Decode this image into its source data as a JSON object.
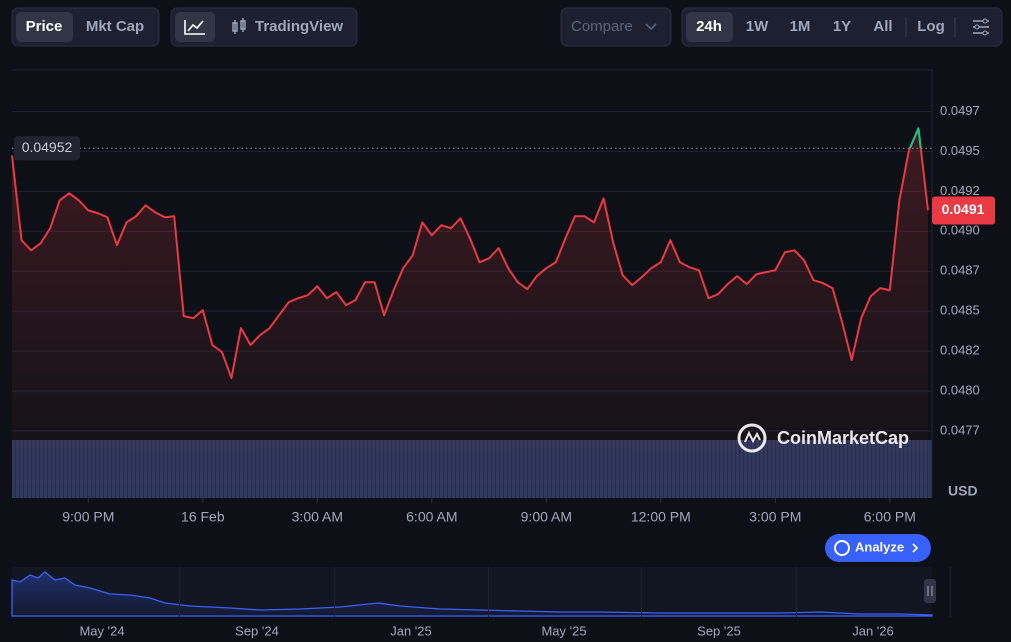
{
  "toolbar": {
    "metric_tabs": [
      "Price",
      "Mkt Cap"
    ],
    "chart_view": "TradingView",
    "compare": "Compare",
    "ranges": [
      "24h",
      "1W",
      "1M",
      "1Y",
      "All"
    ],
    "log": "Log"
  },
  "chart_data": {
    "type": "line",
    "x": [
      -5,
      -4.75,
      -4.5,
      -4.25,
      -4,
      -3.75,
      -3.5,
      -3.25,
      -3,
      -2.75,
      -2.5,
      -2.25,
      -2,
      -1.75,
      -1.5,
      -1.25,
      -1,
      -0.75,
      -0.5,
      -0.25,
      0,
      0.25,
      0.5,
      0.75,
      1,
      1.25,
      1.5,
      1.75,
      2,
      2.25,
      2.5,
      2.75,
      3,
      3.25,
      3.5,
      3.75,
      4,
      4.25,
      4.5,
      4.75,
      5,
      5.25,
      5.5,
      5.75,
      6,
      6.25,
      6.5,
      6.75,
      7,
      7.25,
      7.5,
      7.75,
      8,
      8.25,
      8.5,
      8.75,
      9,
      9.25,
      9.5,
      9.75,
      10,
      10.25,
      10.5,
      10.75,
      11,
      11.25,
      11.5,
      11.75,
      12,
      12.25,
      12.5,
      12.75,
      13,
      13.25,
      13.5,
      13.75,
      14,
      14.25,
      14.5,
      14.75,
      15,
      15.25,
      15.5,
      15.75,
      16,
      16.25,
      16.5,
      16.75,
      17,
      17.25,
      17.5,
      17.75,
      18,
      18.25,
      18.5,
      18.75,
      19
    ],
    "series": [
      {
        "color": "#ea3943",
        "color_above": "#16c784",
        "values": [
          0.049475,
          0.048944,
          0.048881,
          0.048925,
          0.049019,
          0.049194,
          0.049238,
          0.049194,
          0.049131,
          0.049113,
          0.049088,
          0.048913,
          0.049056,
          0.049094,
          0.049163,
          0.049119,
          0.049088,
          0.049094,
          0.048469,
          0.048456,
          0.048506,
          0.048288,
          0.048244,
          0.048081,
          0.048394,
          0.048288,
          0.04835,
          0.048394,
          0.048475,
          0.048556,
          0.048581,
          0.0486,
          0.048656,
          0.048581,
          0.048619,
          0.048538,
          0.048569,
          0.048681,
          0.048681,
          0.048475,
          0.048631,
          0.048769,
          0.04885,
          0.049056,
          0.048975,
          0.049038,
          0.049019,
          0.049081,
          0.048956,
          0.048806,
          0.048831,
          0.048894,
          0.048769,
          0.048681,
          0.048638,
          0.048719,
          0.048769,
          0.048806,
          0.048956,
          0.049094,
          0.049094,
          0.049056,
          0.049206,
          0.048931,
          0.048725,
          0.048663,
          0.048713,
          0.048769,
          0.048806,
          0.048944,
          0.048806,
          0.048775,
          0.048756,
          0.048581,
          0.048606,
          0.048669,
          0.048719,
          0.048669,
          0.048731,
          0.048744,
          0.048756,
          0.048869,
          0.048881,
          0.048819,
          0.048694,
          0.048675,
          0.048644,
          0.048431,
          0.048194,
          0.048456,
          0.048594,
          0.048644,
          0.048631,
          0.049194,
          0.049506,
          0.049644,
          0.049131
        ]
      }
    ],
    "xlim": [
      -5,
      19
    ],
    "xticks": [
      {
        "value": -3,
        "label": "9:00 PM"
      },
      {
        "value": 0,
        "label": "16 Feb"
      },
      {
        "value": 3,
        "label": "3:00 AM"
      },
      {
        "value": 6,
        "label": "6:00 AM"
      },
      {
        "value": 9,
        "label": "9:00 AM"
      },
      {
        "value": 12,
        "label": "12:00 PM"
      },
      {
        "value": 15,
        "label": "3:00 PM"
      },
      {
        "value": 18,
        "label": "6:00 PM"
      }
    ],
    "ylim": [
      0.04733,
      0.05001
    ],
    "yticks": [
      {
        "value": 0.04775,
        "label": "0.0477"
      },
      {
        "value": 0.048,
        "label": "0.0480"
      },
      {
        "value": 0.04825,
        "label": "0.0482"
      },
      {
        "value": 0.0485,
        "label": "0.0485"
      },
      {
        "value": 0.04875,
        "label": "0.0487"
      },
      {
        "value": 0.049,
        "label": "0.0490"
      },
      {
        "value": 0.04925,
        "label": "0.0492"
      },
      {
        "value": 0.0495,
        "label": "0.0495"
      },
      {
        "value": 0.04975,
        "label": "0.0497"
      }
    ],
    "grid": true,
    "reference": 0.04952,
    "current": {
      "value": 0.04913,
      "label": "0.0491"
    },
    "y_axis_label": "USD",
    "watermark": "CoinMarketCap"
  },
  "analyze_button": "Analyze",
  "overview": {
    "xticks": [
      "May '24",
      "Sep '24",
      "Jan '25",
      "May '25",
      "Sep '25",
      "Jan '26"
    ]
  }
}
